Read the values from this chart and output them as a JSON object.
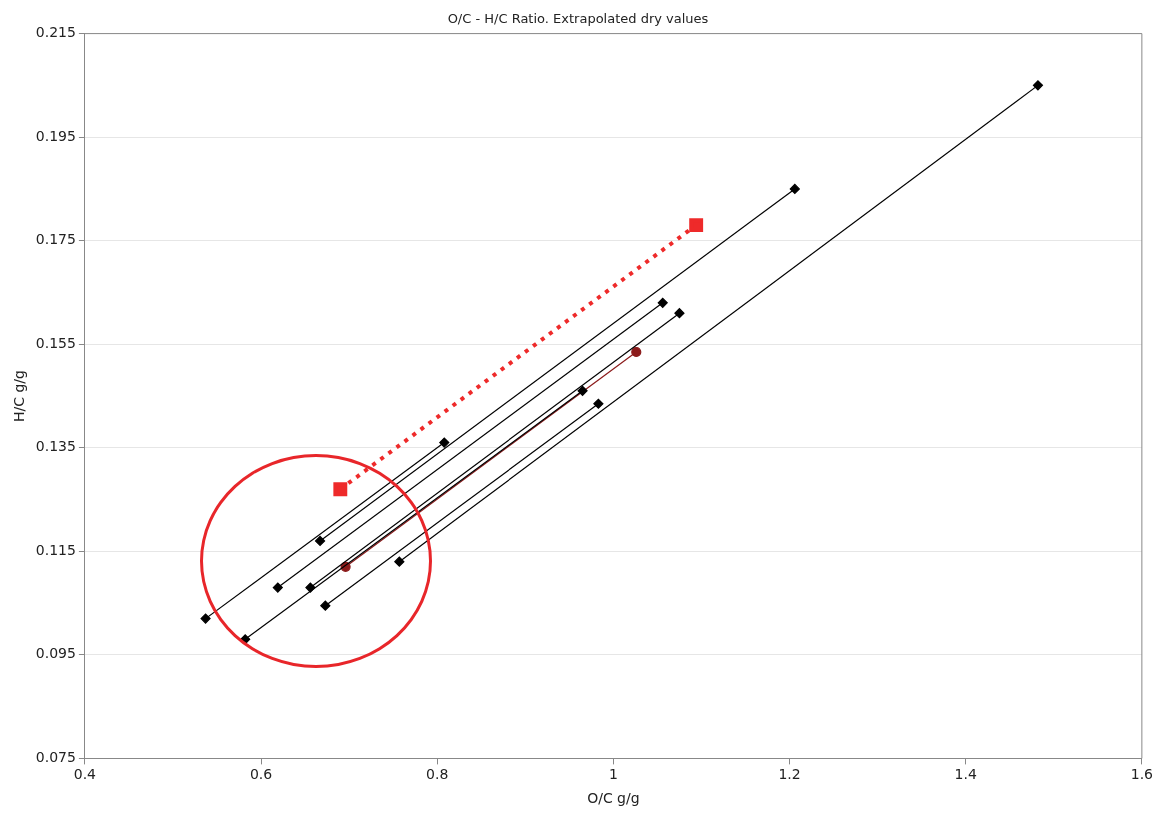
{
  "chart_data": {
    "type": "line",
    "title": "O/C - H/C Ratio. Extrapolated dry values",
    "xlabel": "O/C g/g",
    "ylabel": "H/C g/g",
    "xlim": [
      0.4,
      1.6
    ],
    "xticks": [
      0.4,
      0.6,
      0.8,
      1,
      1.2,
      1.4,
      1.6
    ],
    "ylim": [
      0.075,
      0.215
    ],
    "yticks": [
      0.075,
      0.095,
      0.115,
      0.135,
      0.155,
      0.175,
      0.195,
      0.215
    ],
    "grid": "y",
    "legend": false,
    "series": [
      {
        "color": "#000000",
        "marker": "diamond",
        "line_style": "solid",
        "x": [
          0.537,
          0.808
        ],
        "values": [
          0.102,
          0.136
        ]
      },
      {
        "color": "#000000",
        "marker": "diamond",
        "line_style": "solid",
        "x": [
          0.667,
          1.206
        ],
        "values": [
          0.117,
          0.185
        ]
      },
      {
        "color": "#000000",
        "marker": "diamond",
        "line_style": "solid",
        "x": [
          0.619,
          1.056
        ],
        "values": [
          0.108,
          0.163
        ]
      },
      {
        "color": "#000000",
        "marker": "diamond",
        "line_style": "solid",
        "x": [
          0.656,
          1.075
        ],
        "values": [
          0.108,
          0.161
        ]
      },
      {
        "color": "#000000",
        "marker": "diamond",
        "line_style": "solid",
        "x": [
          0.582,
          0.965
        ],
        "values": [
          0.098,
          0.146
        ]
      },
      {
        "color": "#000000",
        "marker": "diamond",
        "line_style": "solid",
        "x": [
          0.673,
          0.983
        ],
        "values": [
          0.1045,
          0.1435
        ]
      },
      {
        "color": "#000000",
        "marker": "diamond",
        "line_style": "solid",
        "x": [
          0.757,
          1.482
        ],
        "values": [
          0.113,
          0.205
        ]
      },
      {
        "color": "#8b1a1a",
        "marker": "circle",
        "line_style": "solid",
        "x": [
          0.696,
          1.026
        ],
        "values": [
          0.112,
          0.1535
        ]
      },
      {
        "color": "#ee2a2a",
        "marker": "square",
        "line_style": "dotted",
        "x": [
          0.69,
          1.094
        ],
        "values": [
          0.127,
          0.178
        ]
      }
    ]
  }
}
